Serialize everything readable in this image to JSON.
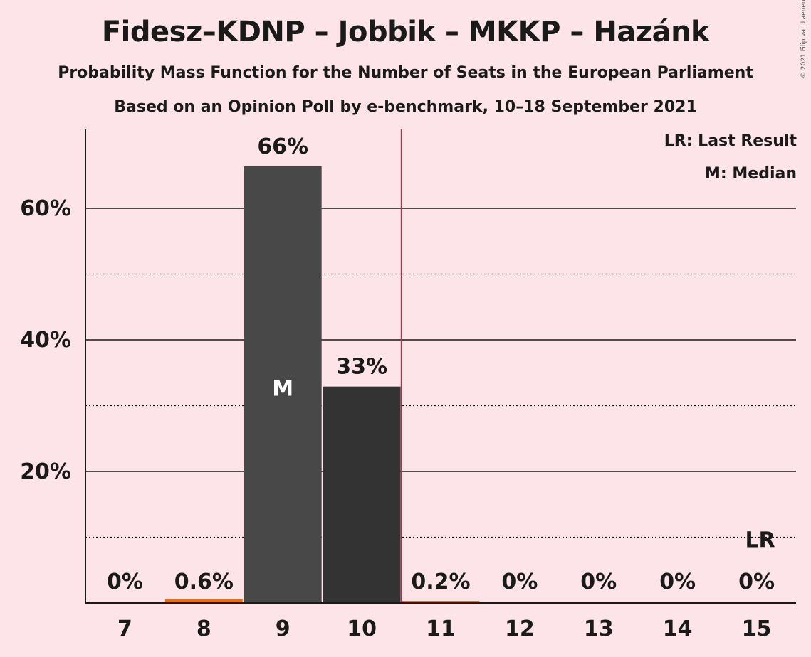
{
  "title": "Fidesz–KDNP – Jobbik – MKKP – Hazánk",
  "subtitle": "Probability Mass Function for the Number of Seats in the European Parliament",
  "subtitle2": "Based on an Opinion Poll by e-benchmark, 10–18 September 2021",
  "copyright": "© 2021 Filip van Laenen",
  "legend": {
    "last_result": "LR: Last Result",
    "median": "M: Median"
  },
  "chart_data": {
    "type": "bar",
    "categories": [
      "7",
      "8",
      "9",
      "10",
      "11",
      "12",
      "13",
      "14",
      "15"
    ],
    "values": [
      0,
      0.6,
      66.4,
      32.9,
      0.2,
      0,
      0,
      0,
      0
    ],
    "value_labels": [
      "0%",
      "0.6%",
      "66%",
      "33%",
      "0.2%",
      "0%",
      "0%",
      "0%",
      "0%"
    ],
    "ylim": [
      0,
      72
    ],
    "yticks": [
      20,
      40,
      60
    ],
    "ytick_labels": [
      "20%",
      "40%",
      "60%"
    ],
    "minor_gridlines": [
      10,
      30,
      50
    ],
    "median_category": "9",
    "median_label": "M",
    "last_result_category": "15",
    "last_result_label": "LR",
    "majority_line_after": "10",
    "colors": {
      "bar_median": "#484848",
      "bar_default": "#333333",
      "bar_small": "#e36e1c",
      "majority_line": "#c0294d",
      "background": "#fce4e8"
    },
    "grid": true,
    "legend_position": "top-right"
  }
}
